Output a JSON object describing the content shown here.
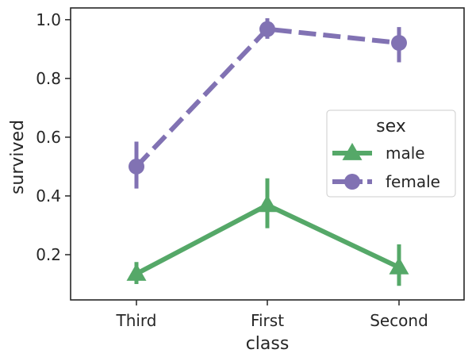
{
  "chart_data": {
    "type": "line",
    "xlabel": "class",
    "ylabel": "survived",
    "categories": [
      "Third",
      "First",
      "Second"
    ],
    "ylim": [
      0.046,
      1.04
    ],
    "yticks": [
      0.2,
      0.4,
      0.6,
      0.8,
      1.0
    ],
    "ytick_labels": [
      "0.2",
      "0.4",
      "0.6",
      "0.8",
      "1.0"
    ],
    "grid": false,
    "legend": {
      "title": "sex",
      "position": "center-right"
    },
    "series": [
      {
        "name": "male",
        "values": [
          0.135,
          0.369,
          0.157
        ],
        "ci_low": [
          0.1,
          0.29,
          0.094
        ],
        "ci_high": [
          0.175,
          0.46,
          0.235
        ],
        "color": "#55a868",
        "marker": "triangle-up",
        "linestyle": "solid"
      },
      {
        "name": "female",
        "values": [
          0.5,
          0.968,
          0.921
        ],
        "ci_low": [
          0.425,
          0.935,
          0.855
        ],
        "ci_high": [
          0.585,
          1.005,
          0.975
        ],
        "color": "#8172b3",
        "marker": "circle",
        "linestyle": "dashed"
      }
    ]
  }
}
